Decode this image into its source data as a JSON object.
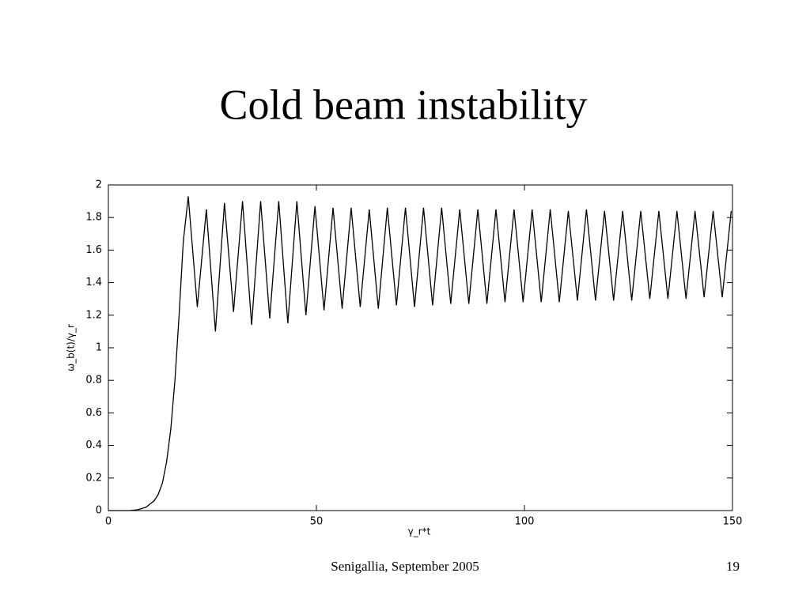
{
  "chart_data": {
    "type": "line",
    "title": "Cold beam instability",
    "xlabel": "γ_r*t",
    "ylabel": "ω_b(t)/γ_r",
    "x": [
      0,
      5,
      7,
      9,
      11,
      12,
      13,
      14,
      15,
      16,
      17,
      18,
      19.2,
      21.38,
      23.55,
      25.73,
      27.9,
      30.08,
      32.25,
      34.43,
      36.6,
      38.78,
      40.95,
      43.13,
      45.3,
      47.48,
      49.65,
      51.83,
      54.0,
      56.18,
      58.35,
      60.53,
      62.7,
      64.88,
      67.05,
      69.23,
      71.4,
      73.58,
      75.75,
      77.93,
      80.1,
      82.28,
      84.45,
      86.63,
      88.8,
      90.98,
      93.15,
      95.33,
      97.5,
      99.68,
      101.85,
      104.03,
      106.2,
      108.38,
      110.55,
      112.73,
      114.9,
      117.08,
      119.25,
      121.43,
      123.6,
      125.78,
      127.95,
      130.13,
      132.3,
      134.48,
      136.65,
      138.83,
      141.0,
      143.18,
      145.35,
      147.53,
      149.7
    ],
    "series": [
      {
        "name": "ω_b(t)/γ_r",
        "color": "#000000",
        "values": [
          0,
          0,
          0.005,
          0.02,
          0.06,
          0.1,
          0.17,
          0.3,
          0.5,
          0.8,
          1.2,
          1.65,
          1.93,
          1.25,
          1.85,
          1.1,
          1.89,
          1.22,
          1.9,
          1.14,
          1.9,
          1.18,
          1.9,
          1.15,
          1.9,
          1.2,
          1.87,
          1.23,
          1.86,
          1.24,
          1.86,
          1.25,
          1.85,
          1.24,
          1.86,
          1.26,
          1.86,
          1.25,
          1.86,
          1.26,
          1.86,
          1.27,
          1.85,
          1.27,
          1.85,
          1.27,
          1.85,
          1.28,
          1.85,
          1.28,
          1.85,
          1.28,
          1.85,
          1.28,
          1.84,
          1.29,
          1.85,
          1.29,
          1.84,
          1.29,
          1.84,
          1.29,
          1.84,
          1.3,
          1.84,
          1.3,
          1.84,
          1.3,
          1.84,
          1.31,
          1.84,
          1.31,
          1.84
        ]
      }
    ],
    "xlim": [
      0,
      150
    ],
    "xticks": [
      0,
      50,
      100,
      150
    ],
    "ylim": [
      0,
      2
    ],
    "yticks": [
      0,
      0.2,
      0.4,
      0.6,
      0.8,
      1,
      1.2,
      1.4,
      1.6,
      1.8,
      2
    ]
  },
  "slide": {
    "footer": "Senigallia, September 2005",
    "page": "19"
  }
}
